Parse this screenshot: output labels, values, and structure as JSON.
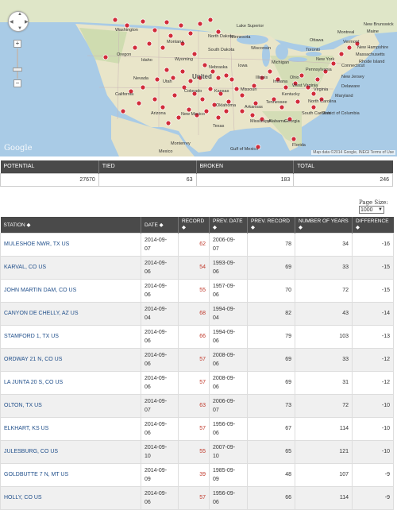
{
  "map": {
    "attribution": "Map data ©2014 Google, INEGI   Terms of Use",
    "logo": "Google",
    "labels": {
      "country": "United",
      "states": [
        "Washington",
        "Oregon",
        "Idaho",
        "Montana",
        "North Dakota",
        "South Dakota",
        "Wyoming",
        "Nebraska",
        "Nevada",
        "Utah",
        "Colorado",
        "Kansas",
        "California",
        "Arizona",
        "New Mexico",
        "Oklahoma",
        "Texas",
        "Minnesota",
        "Wisconsin",
        "Iowa",
        "Illinois",
        "Missouri",
        "Michigan",
        "Indiana",
        "Ohio",
        "Kentucky",
        "Tennessee",
        "Arkansas",
        "Mississippi",
        "Alabama",
        "Georgia",
        "Florida",
        "Pennsylvania",
        "New York",
        "Virginia",
        "West Virginia",
        "North Carolina",
        "South Carolina",
        "Maine",
        "Vermont",
        "New Hampshire",
        "Massachusetts",
        "Rhode Island",
        "Connecticut",
        "New Jersey",
        "Delaware",
        "Maryland",
        "District of Columbia",
        "Ottawa",
        "Montreal",
        "Toronto",
        "New Brunswick",
        "Monterrey",
        "Mexico",
        "Gulf of Mexico",
        "Lake Superior"
      ]
    }
  },
  "summary": {
    "headers": [
      "POTENTIAL",
      "TIED",
      "BROKEN",
      "TOTAL"
    ],
    "values": [
      "27670",
      "63",
      "183",
      "246"
    ]
  },
  "page_size": {
    "label": "Page Size:",
    "value": "1000"
  },
  "table": {
    "headers": [
      "STATION",
      "DATE",
      "RECORD",
      "PREV. DATE",
      "PREV. RECORD",
      "NUMBER OF YEARS",
      "DIFFERENCE"
    ],
    "sort_icon": "sort-icon",
    "rows": [
      {
        "station": "MULESHOE NWR, TX US",
        "date1": "2014-09-",
        "date2": "07",
        "record": "62",
        "prev1": "2006-09-",
        "prev2": "07",
        "prev_record": "78",
        "years": "34",
        "diff": "-16"
      },
      {
        "station": "KARVAL, CO US",
        "date1": "2014-09-",
        "date2": "06",
        "record": "54",
        "prev1": "1993-09-",
        "prev2": "06",
        "prev_record": "69",
        "years": "33",
        "diff": "-15"
      },
      {
        "station": "JOHN MARTIN DAM, CO US",
        "date1": "2014-09-",
        "date2": "06",
        "record": "55",
        "prev1": "1957-09-",
        "prev2": "06",
        "prev_record": "70",
        "years": "72",
        "diff": "-15"
      },
      {
        "station": "CANYON DE CHELLY, AZ US",
        "date1": "2014-09-",
        "date2": "04",
        "record": "68",
        "prev1": "1994-09-",
        "prev2": "04",
        "prev_record": "82",
        "years": "43",
        "diff": "-14"
      },
      {
        "station": "STAMFORD 1, TX US",
        "date1": "2014-09-",
        "date2": "06",
        "record": "66",
        "prev1": "1994-09-",
        "prev2": "06",
        "prev_record": "79",
        "years": "103",
        "diff": "-13"
      },
      {
        "station": "ORDWAY 21 N, CO US",
        "date1": "2014-09-",
        "date2": "06",
        "record": "57",
        "prev1": "2008-09-",
        "prev2": "06",
        "prev_record": "69",
        "years": "33",
        "diff": "-12"
      },
      {
        "station": "LA JUNTA 20 S, CO US",
        "date1": "2014-09-",
        "date2": "06",
        "record": "57",
        "prev1": "2008-09-",
        "prev2": "06",
        "prev_record": "69",
        "years": "31",
        "diff": "-12"
      },
      {
        "station": "OLTON, TX US",
        "date1": "2014-09-",
        "date2": "07",
        "record": "63",
        "prev1": "2006-09-",
        "prev2": "07",
        "prev_record": "73",
        "years": "72",
        "diff": "-10"
      },
      {
        "station": "ELKHART, KS US",
        "date1": "2014-09-",
        "date2": "06",
        "record": "57",
        "prev1": "1956-09-",
        "prev2": "06",
        "prev_record": "67",
        "years": "114",
        "diff": "-10"
      },
      {
        "station": "JULESBURG, CO US",
        "date1": "2014-09-",
        "date2": "10",
        "record": "55",
        "prev1": "2007-09-",
        "prev2": "10",
        "prev_record": "65",
        "years": "121",
        "diff": "-10"
      },
      {
        "station": "GOLDBUTTE 7 N, MT US",
        "date1": "2014-09-",
        "date2": "09",
        "record": "39",
        "prev1": "1985-09-",
        "prev2": "09",
        "prev_record": "48",
        "years": "107",
        "diff": "-9"
      },
      {
        "station": "HOLLY, CO US",
        "date1": "2014-09-",
        "date2": "06",
        "record": "57",
        "prev1": "1956-09-",
        "prev2": "06",
        "prev_record": "66",
        "years": "114",
        "diff": "-9"
      }
    ]
  }
}
